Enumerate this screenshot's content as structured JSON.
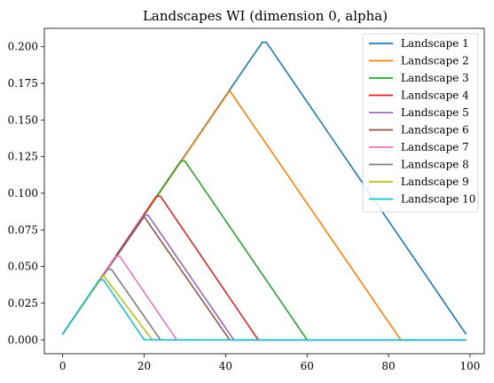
{
  "chart_data": {
    "type": "line",
    "title": "Landscapes WI (dimension 0, alpha)",
    "xlabel": "",
    "ylabel": "",
    "xlim": [
      -4.5,
      103.5
    ],
    "ylim": [
      -0.0095,
      0.2125
    ],
    "x_ticks": [
      0,
      20,
      40,
      60,
      80,
      100
    ],
    "x_tick_labels": [
      "0",
      "20",
      "40",
      "60",
      "80",
      "100"
    ],
    "y_ticks": [
      0.0,
      0.025,
      0.05,
      0.075,
      0.1,
      0.125,
      0.15,
      0.175,
      0.2
    ],
    "y_tick_labels": [
      "0.000",
      "0.025",
      "0.050",
      "0.075",
      "0.100",
      "0.125",
      "0.150",
      "0.175",
      "0.200"
    ],
    "grid": false,
    "legend_position": "top-right",
    "series": [
      {
        "name": "Landscape 1",
        "color": "#1f77b4",
        "x": [
          0,
          49,
          50,
          99
        ],
        "y": [
          0.004,
          0.203,
          0.203,
          0.004
        ]
      },
      {
        "name": "Landscape 2",
        "color": "#ff7f0e",
        "x": [
          0,
          41,
          83,
          99
        ],
        "y": [
          0.004,
          0.17,
          0.0,
          0.0
        ]
      },
      {
        "name": "Landscape 3",
        "color": "#2ca02c",
        "x": [
          0,
          29,
          30,
          60,
          99
        ],
        "y": [
          0.004,
          0.122,
          0.122,
          0.0,
          0.0
        ]
      },
      {
        "name": "Landscape 4",
        "color": "#d62728",
        "x": [
          0,
          23,
          24,
          48,
          99
        ],
        "y": [
          0.004,
          0.098,
          0.098,
          0.0,
          0.0
        ]
      },
      {
        "name": "Landscape 5",
        "color": "#9467bd",
        "x": [
          0,
          20,
          21,
          42,
          99
        ],
        "y": [
          0.004,
          0.085,
          0.085,
          0.0,
          0.0
        ]
      },
      {
        "name": "Landscape 6",
        "color": "#8c564b",
        "x": [
          0,
          20,
          41,
          99
        ],
        "y": [
          0.004,
          0.084,
          0.0,
          0.0
        ]
      },
      {
        "name": "Landscape 7",
        "color": "#e377c2",
        "x": [
          0,
          13,
          14,
          28,
          99
        ],
        "y": [
          0.004,
          0.057,
          0.057,
          0.0,
          0.0
        ]
      },
      {
        "name": "Landscape 8",
        "color": "#7f7f7f",
        "x": [
          0,
          11,
          12,
          24,
          99
        ],
        "y": [
          0.004,
          0.048,
          0.048,
          0.0,
          0.0
        ]
      },
      {
        "name": "Landscape 9",
        "color": "#bcbd22",
        "x": [
          0,
          10,
          22,
          99
        ],
        "y": [
          0.004,
          0.044,
          0.0,
          0.0
        ]
      },
      {
        "name": "Landscape 10",
        "color": "#17becf",
        "x": [
          0,
          9,
          10,
          20,
          99
        ],
        "y": [
          0.004,
          0.041,
          0.041,
          0.0,
          0.0
        ]
      }
    ]
  }
}
